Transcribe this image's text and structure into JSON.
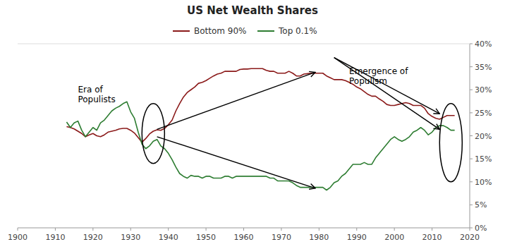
{
  "chart_data": {
    "type": "line",
    "title": "US Net Wealth Shares",
    "x": [
      1913,
      1914,
      1915,
      1916,
      1917,
      1918,
      1919,
      1920,
      1921,
      1922,
      1923,
      1924,
      1925,
      1926,
      1927,
      1928,
      1929,
      1930,
      1931,
      1932,
      1933,
      1934,
      1935,
      1936,
      1937,
      1938,
      1939,
      1940,
      1941,
      1942,
      1943,
      1944,
      1945,
      1946,
      1947,
      1948,
      1949,
      1950,
      1951,
      1952,
      1953,
      1954,
      1955,
      1956,
      1957,
      1958,
      1959,
      1960,
      1961,
      1962,
      1963,
      1964,
      1965,
      1966,
      1967,
      1968,
      1969,
      1970,
      1971,
      1972,
      1973,
      1974,
      1975,
      1976,
      1977,
      1978,
      1979,
      1980,
      1981,
      1982,
      1983,
      1984,
      1985,
      1986,
      1987,
      1988,
      1989,
      1990,
      1991,
      1992,
      1993,
      1994,
      1995,
      1996,
      1997,
      1998,
      1999,
      2000,
      2001,
      2002,
      2003,
      2004,
      2005,
      2006,
      2007,
      2008,
      2009,
      2010,
      2011,
      2012,
      2013,
      2014,
      2015,
      2016
    ],
    "series": [
      {
        "name": "Bottom 90%",
        "color": "#8B1A1A",
        "values": [
          0.22,
          0.218,
          0.215,
          0.21,
          0.205,
          0.198,
          0.202,
          0.205,
          0.2,
          0.198,
          0.202,
          0.208,
          0.21,
          0.212,
          0.215,
          0.216,
          0.216,
          0.212,
          0.206,
          0.196,
          0.186,
          0.194,
          0.204,
          0.21,
          0.213,
          0.212,
          0.216,
          0.224,
          0.234,
          0.254,
          0.27,
          0.284,
          0.294,
          0.3,
          0.306,
          0.314,
          0.316,
          0.32,
          0.325,
          0.33,
          0.334,
          0.336,
          0.34,
          0.34,
          0.34,
          0.34,
          0.344,
          0.345,
          0.345,
          0.346,
          0.346,
          0.346,
          0.346,
          0.342,
          0.34,
          0.34,
          0.336,
          0.336,
          0.336,
          0.34,
          0.336,
          0.33,
          0.33,
          0.334,
          0.335,
          0.336,
          0.336,
          0.336,
          0.336,
          0.33,
          0.326,
          0.322,
          0.322,
          0.322,
          0.32,
          0.316,
          0.312,
          0.306,
          0.302,
          0.296,
          0.29,
          0.286,
          0.286,
          0.28,
          0.275,
          0.268,
          0.266,
          0.266,
          0.268,
          0.27,
          0.272,
          0.27,
          0.266,
          0.266,
          0.266,
          0.26,
          0.248,
          0.242,
          0.238,
          0.236,
          0.24,
          0.244,
          0.244,
          0.244
        ]
      },
      {
        "name": "Top 0.1%",
        "color": "#2E7D32",
        "values": [
          0.23,
          0.218,
          0.228,
          0.232,
          0.212,
          0.198,
          0.208,
          0.218,
          0.212,
          0.228,
          0.234,
          0.244,
          0.254,
          0.26,
          0.264,
          0.27,
          0.274,
          0.252,
          0.238,
          0.208,
          0.182,
          0.172,
          0.178,
          0.188,
          0.192,
          0.178,
          0.172,
          0.162,
          0.148,
          0.132,
          0.118,
          0.112,
          0.108,
          0.114,
          0.112,
          0.112,
          0.108,
          0.112,
          0.112,
          0.108,
          0.108,
          0.108,
          0.112,
          0.112,
          0.108,
          0.112,
          0.112,
          0.112,
          0.112,
          0.112,
          0.112,
          0.112,
          0.112,
          0.112,
          0.108,
          0.108,
          0.102,
          0.102,
          0.102,
          0.102,
          0.098,
          0.092,
          0.088,
          0.088,
          0.088,
          0.088,
          0.088,
          0.088,
          0.088,
          0.082,
          0.088,
          0.098,
          0.102,
          0.112,
          0.118,
          0.128,
          0.138,
          0.138,
          0.138,
          0.142,
          0.138,
          0.138,
          0.152,
          0.162,
          0.172,
          0.182,
          0.192,
          0.198,
          0.192,
          0.188,
          0.192,
          0.198,
          0.208,
          0.212,
          0.218,
          0.212,
          0.202,
          0.208,
          0.218,
          0.222,
          0.222,
          0.218,
          0.212,
          0.212
        ]
      }
    ],
    "xlim": [
      1900,
      2020
    ],
    "xticks": [
      1900,
      1910,
      1920,
      1930,
      1940,
      1950,
      1960,
      1970,
      1980,
      1990,
      2000,
      2010,
      2020
    ],
    "ylim": [
      0.0,
      0.4
    ],
    "yticks": [
      {
        "value": 0.0,
        "label": "0%"
      },
      {
        "value": 0.05,
        "label": "5%"
      },
      {
        "value": 0.1,
        "label": "10%"
      },
      {
        "value": 0.15,
        "label": "15%"
      },
      {
        "value": 0.2,
        "label": "20%"
      },
      {
        "value": 0.25,
        "label": "25%"
      },
      {
        "value": 0.3,
        "label": "30%"
      },
      {
        "value": 0.35,
        "label": "35%"
      },
      {
        "value": 0.4,
        "label": "40%"
      }
    ],
    "grid": false,
    "legend": "top",
    "annotations": [
      {
        "text": "Era of\nPopulists",
        "x": 1916,
        "y": 0.29
      },
      {
        "text": "Emergence of\nPopulism",
        "x": 1988,
        "y": 0.33
      }
    ],
    "arrows": [
      {
        "x1": 1937,
        "y1": 0.198,
        "x2": 1979,
        "y2": 0.086
      },
      {
        "x1": 1937,
        "y1": 0.214,
        "x2": 1979,
        "y2": 0.338
      },
      {
        "x1": 1984,
        "y1": 0.37,
        "x2": 2012,
        "y2": 0.248
      },
      {
        "x1": 1984,
        "y1": 0.37,
        "x2": 2012,
        "y2": 0.214
      }
    ],
    "ellipses": [
      {
        "x": 1936,
        "y": 0.205,
        "width": 6,
        "height": 0.13
      },
      {
        "x": 2015,
        "y": 0.185,
        "width": 6,
        "height": 0.17
      }
    ]
  }
}
